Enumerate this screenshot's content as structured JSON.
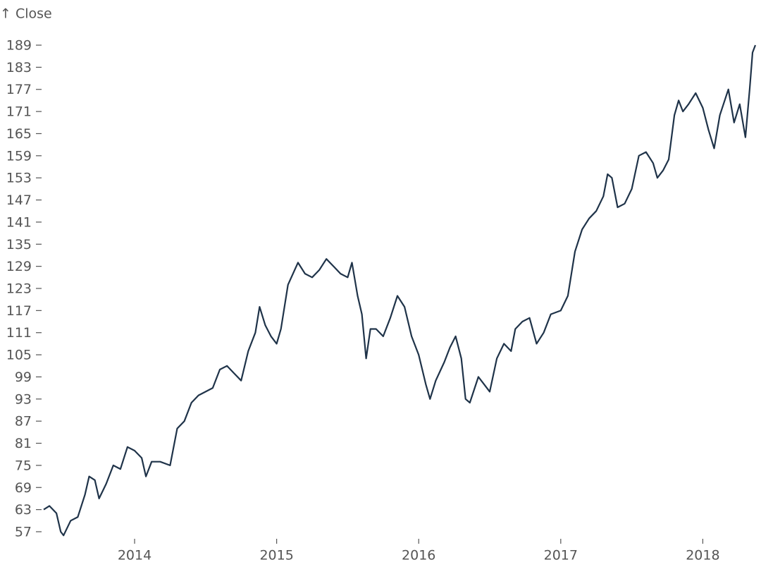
{
  "chart_data": {
    "type": "line",
    "y_label": "↑ Close",
    "x": [
      2013.36,
      2013.4,
      2013.45,
      2013.48,
      2013.5,
      2013.55,
      2013.6,
      2013.65,
      2013.68,
      2013.72,
      2013.75,
      2013.8,
      2013.85,
      2013.9,
      2013.95,
      2014.0,
      2014.05,
      2014.08,
      2014.12,
      2014.18,
      2014.25,
      2014.3,
      2014.35,
      2014.4,
      2014.45,
      2014.5,
      2014.55,
      2014.6,
      2014.65,
      2014.7,
      2014.75,
      2014.8,
      2014.85,
      2014.88,
      2014.92,
      2014.96,
      2015.0,
      2015.03,
      2015.08,
      2015.15,
      2015.2,
      2015.25,
      2015.3,
      2015.35,
      2015.4,
      2015.45,
      2015.5,
      2015.53,
      2015.57,
      2015.6,
      2015.63,
      2015.66,
      2015.7,
      2015.75,
      2015.8,
      2015.85,
      2015.9,
      2015.95,
      2016.0,
      2016.05,
      2016.08,
      2016.12,
      2016.18,
      2016.22,
      2016.26,
      2016.3,
      2016.33,
      2016.36,
      2016.42,
      2016.46,
      2016.5,
      2016.55,
      2016.6,
      2016.65,
      2016.68,
      2016.73,
      2016.78,
      2016.83,
      2016.88,
      2016.93,
      2017.0,
      2017.05,
      2017.1,
      2017.15,
      2017.2,
      2017.25,
      2017.3,
      2017.33,
      2017.36,
      2017.4,
      2017.45,
      2017.5,
      2017.55,
      2017.6,
      2017.65,
      2017.68,
      2017.72,
      2017.76,
      2017.8,
      2017.83,
      2017.86,
      2017.9,
      2017.95,
      2018.0,
      2018.04,
      2018.08,
      2018.12,
      2018.18,
      2018.22,
      2018.26,
      2018.3,
      2018.33,
      2018.35,
      2018.37
    ],
    "series": [
      {
        "name": "Close",
        "color": "#1f3349",
        "values": [
          63,
          64,
          62,
          57,
          56,
          60,
          61,
          67,
          72,
          71,
          66,
          70,
          75,
          74,
          80,
          79,
          77,
          72,
          76,
          76,
          75,
          85,
          87,
          92,
          94,
          95,
          96,
          101,
          102,
          100,
          98,
          106,
          111,
          118,
          113,
          110,
          108,
          112,
          124,
          130,
          127,
          126,
          128,
          131,
          129,
          127,
          126,
          130,
          121,
          116,
          104,
          112,
          112,
          110,
          115,
          121,
          118,
          110,
          105,
          97,
          93,
          98,
          103,
          107,
          110,
          104,
          93,
          92,
          99,
          97,
          95,
          104,
          108,
          106,
          112,
          114,
          115,
          108,
          111,
          116,
          117,
          121,
          133,
          139,
          142,
          144,
          148,
          154,
          153,
          145,
          146,
          150,
          159,
          160,
          157,
          153,
          155,
          158,
          170,
          174,
          171,
          173,
          176,
          172,
          166,
          161,
          170,
          177,
          168,
          173,
          164,
          177,
          187,
          189
        ]
      }
    ],
    "xlim": [
      2013.36,
      2018.37
    ],
    "xticks": [
      2014,
      2015,
      2016,
      2017,
      2018
    ],
    "ylim": [
      56,
      190
    ],
    "yticks": [
      57,
      63,
      69,
      75,
      81,
      87,
      93,
      99,
      105,
      111,
      117,
      123,
      129,
      135,
      141,
      147,
      153,
      159,
      165,
      171,
      177,
      183,
      189
    ]
  }
}
